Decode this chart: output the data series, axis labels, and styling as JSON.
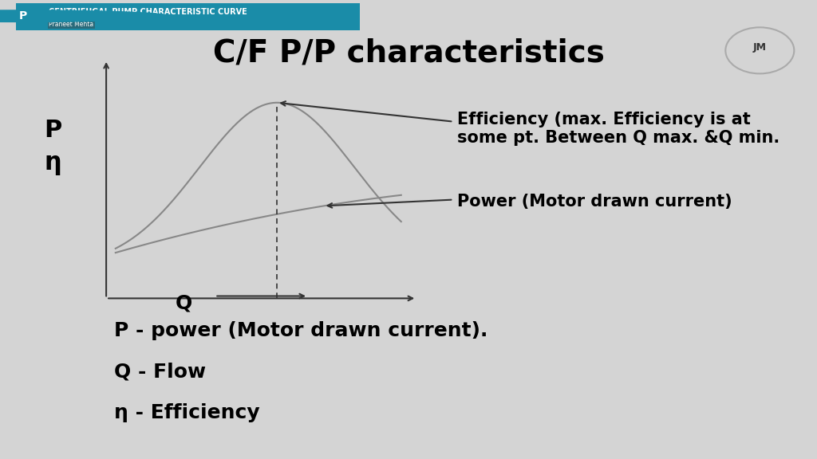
{
  "title": "C/F P/P characteristics",
  "background_color": "#d4d4d4",
  "header_text": "CENTRIFUGAL PUMP CHARACTERISTIC CURVE",
  "header_bg": "#1a8ca8",
  "subheader_text": "Praneet Mehta",
  "ylabel_text": "P\nη",
  "xlabel_text": "Q",
  "efficiency_label": "Efficiency (max. Efficiency is at\nsome pt. Between Q max. &Q min.",
  "power_label": "Power (Motor drawn current)",
  "legend1": "P - power (Motor drawn current).",
  "legend2": "Q - Flow",
  "legend3": "η - Efficiency",
  "curve_color": "#888888",
  "axis_color": "#333333",
  "plot_bg": "#d8d8d8",
  "title_fontsize": 28,
  "label_fontsize": 16,
  "anno_fontsize": 15,
  "legend_fontsize": 18
}
